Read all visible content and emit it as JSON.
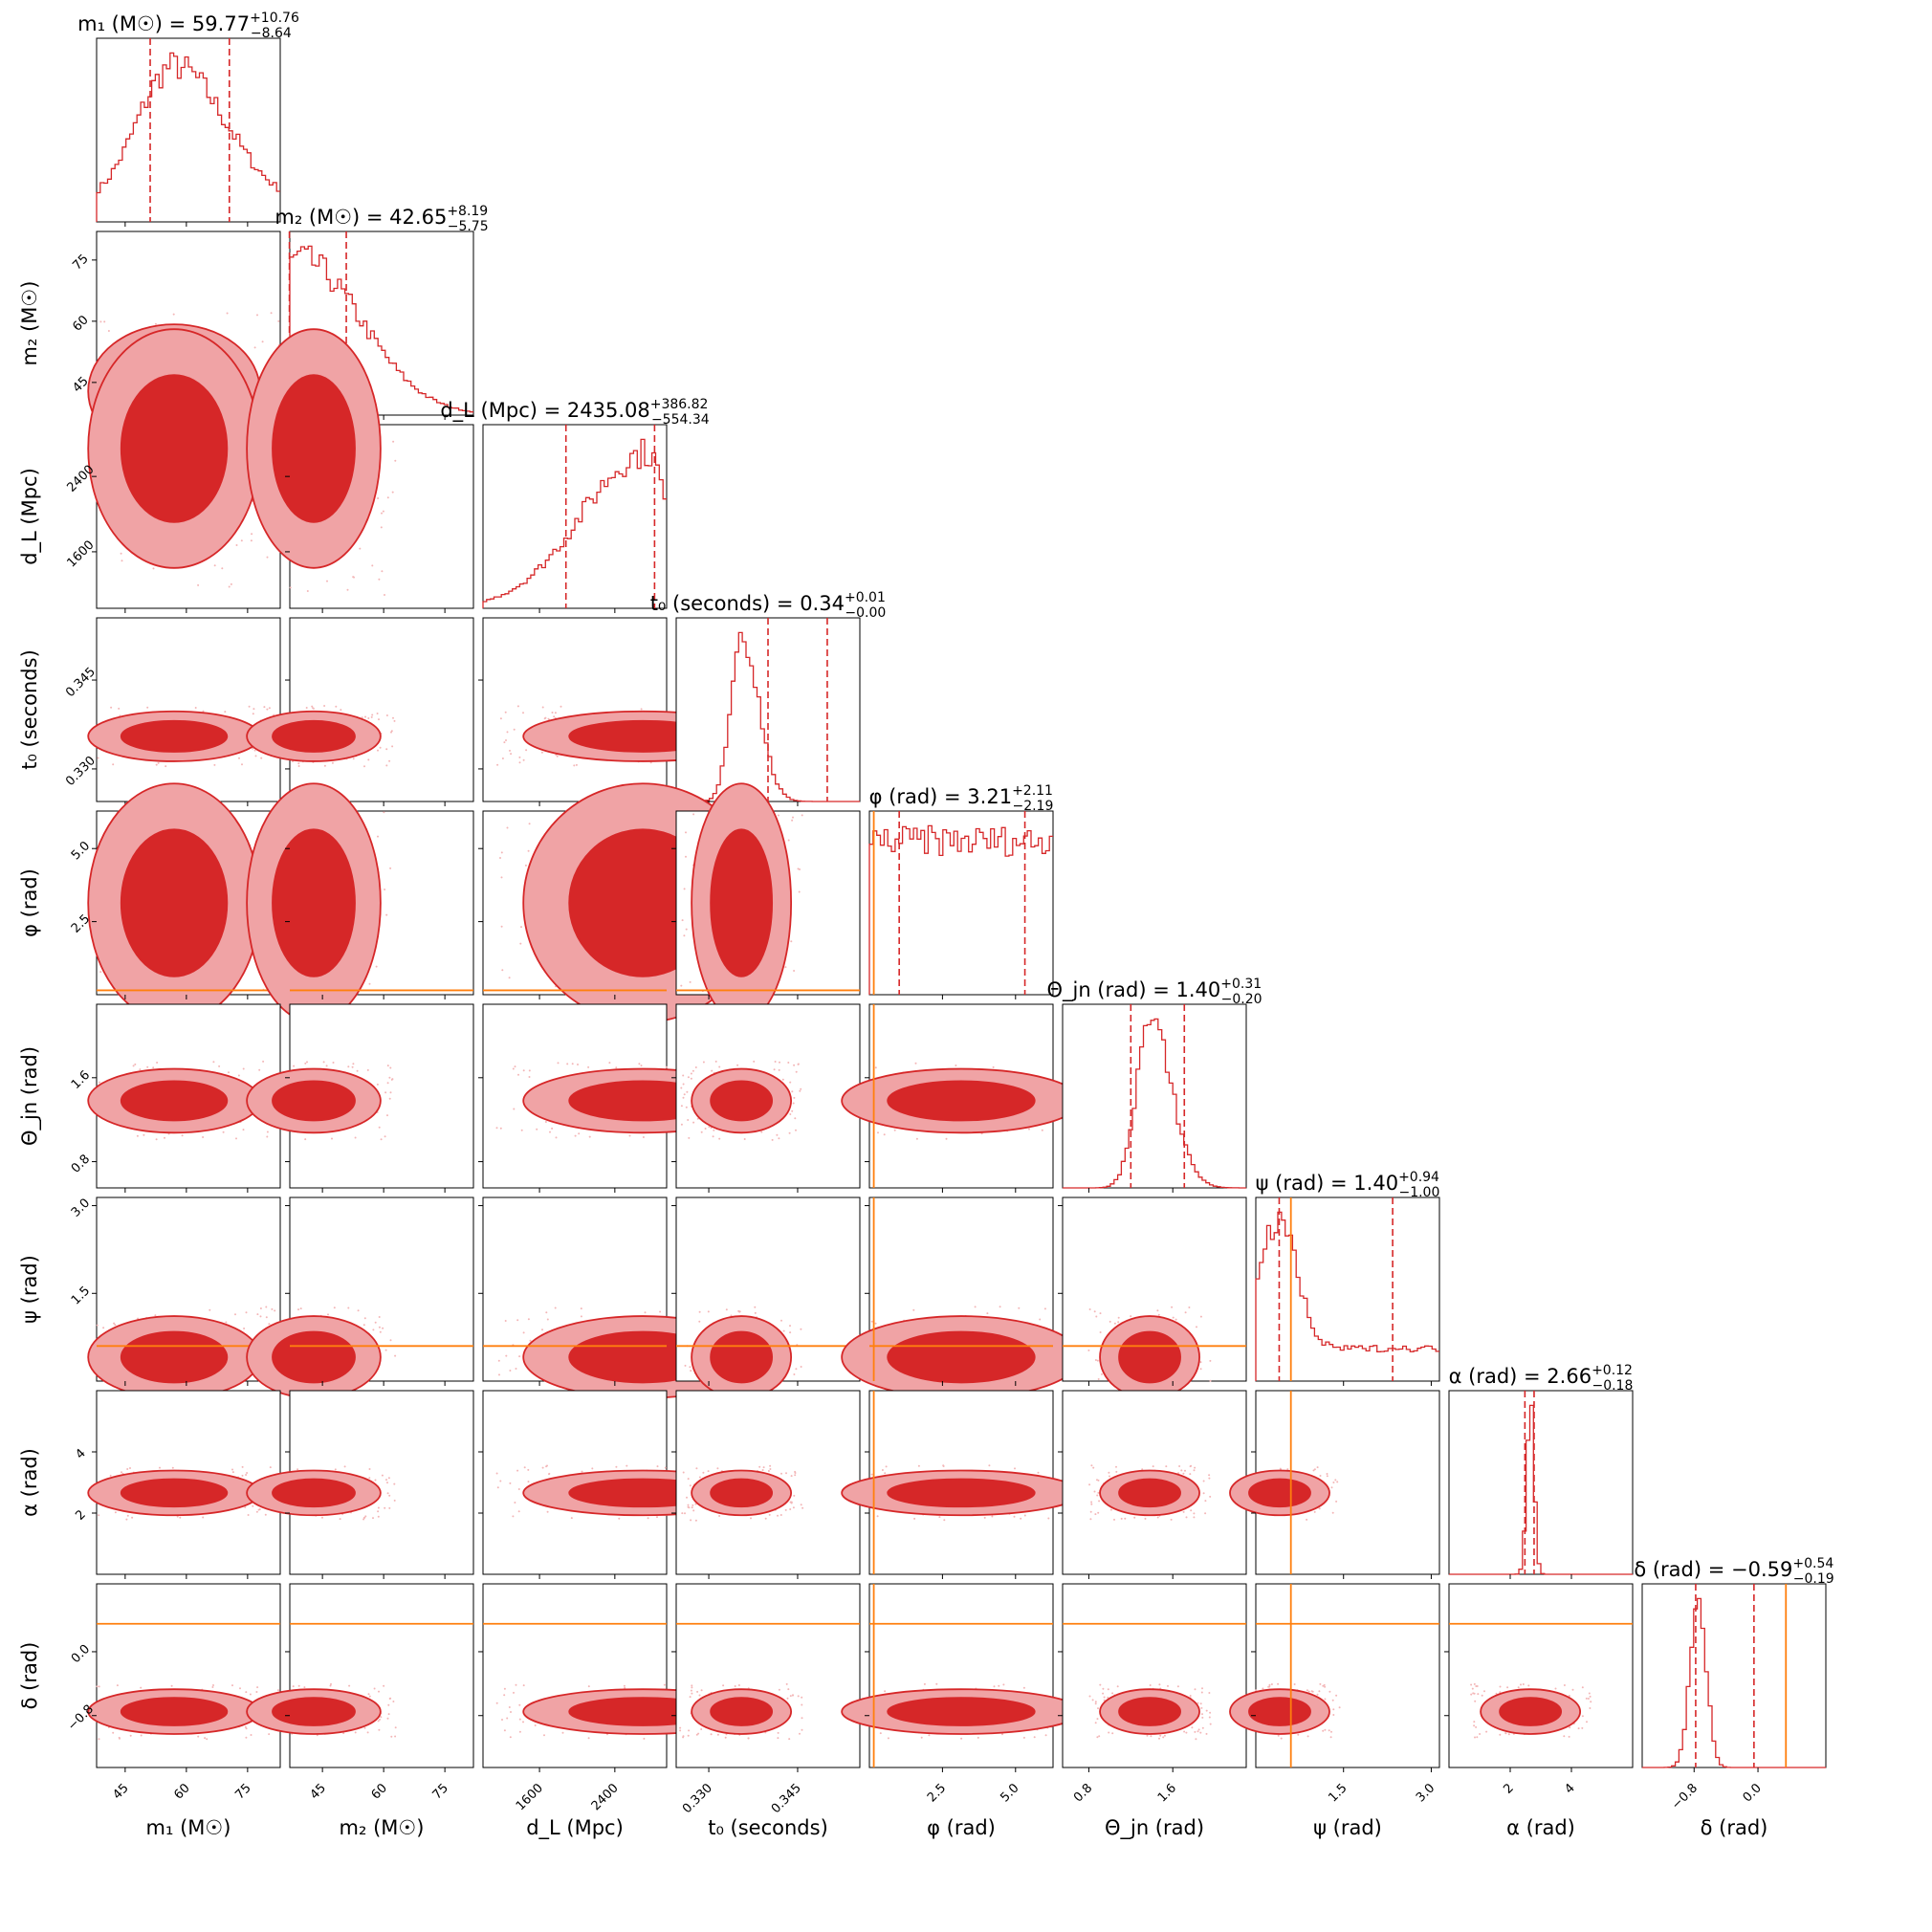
{
  "chart_data": {
    "type": "corner",
    "parameters": [
      {
        "key": "m1",
        "label": "m₁ (M☉)",
        "title": "m₁ (M☉) = 59.77",
        "median": 59.77,
        "plus": "+10.76",
        "minus": "−8.64",
        "range": [
          38,
          83
        ],
        "ticks": [
          45,
          60,
          75
        ],
        "tick_labels": [
          "45",
          "60",
          "75"
        ],
        "hist_mode": 57,
        "hist_width": 9,
        "hist_skew": 1.4,
        "hist_floor": 0.1
      },
      {
        "key": "m2",
        "label": "m₂ (M☉)",
        "title": "m₂ (M☉) = 42.65",
        "median": 42.65,
        "plus": "+8.19",
        "minus": "−5.75",
        "range": [
          37,
          82
        ],
        "ticks": [
          45,
          60,
          75
        ],
        "tick_labels": [
          "45",
          "60",
          "75"
        ],
        "hist_mode": 39,
        "hist_width": 7,
        "hist_skew": 2.2,
        "hist_floor": 0.0
      },
      {
        "key": "dL",
        "label": "d_L (Mpc)",
        "title": "d_L (Mpc) = 2435.08",
        "median": 2435.08,
        "plus": "+386.82",
        "minus": "−554.34",
        "range": [
          1000,
          2950
        ],
        "ticks": [
          1600,
          2400
        ],
        "tick_labels": [
          "1600",
          "2400"
        ],
        "hist_mode": 2750,
        "hist_width": 700,
        "hist_skew": 0.3,
        "hist_floor": 0.0
      },
      {
        "key": "t0",
        "label": "t₀ (seconds)",
        "title": "t₀ (seconds) = 0.34",
        "median": 0.34,
        "plus": "+0.01",
        "minus": "−0.00",
        "range": [
          0.3245,
          0.3555
        ],
        "ticks": [
          0.33,
          0.345
        ],
        "tick_labels": [
          "0.330",
          "0.345"
        ],
        "hist_mode": 0.3355,
        "hist_width": 0.0018,
        "hist_skew": 1.6,
        "hist_floor": 0.0
      },
      {
        "key": "phi",
        "label": "φ (rad)",
        "title": "φ (rad) = 3.21",
        "median": 3.21,
        "plus": "+2.11",
        "minus": "−2.19",
        "range": [
          0,
          6.283
        ],
        "ticks": [
          2.5,
          5.0
        ],
        "tick_labels": [
          "2.5",
          "5.0"
        ],
        "hist_mode": 3.14,
        "hist_width": 100,
        "hist_skew": 1,
        "hist_floor": 0.8
      },
      {
        "key": "theta",
        "label": "Θ_jn (rad)",
        "title": "Θ_jn (rad) = 1.40",
        "median": 1.4,
        "plus": "+0.31",
        "minus": "−0.20",
        "range": [
          0.55,
          2.3
        ],
        "ticks": [
          0.8,
          1.6
        ],
        "tick_labels": [
          "0.8",
          "1.6"
        ],
        "hist_mode": 1.38,
        "hist_width": 0.13,
        "hist_skew": 1.6,
        "hist_floor": 0.0
      },
      {
        "key": "psi",
        "label": "ψ (rad)",
        "title": "ψ (rad) = 1.40",
        "median": 1.4,
        "plus": "+0.94",
        "minus": "−1.00",
        "range": [
          0,
          3.14
        ],
        "ticks": [
          1.5,
          3.0
        ],
        "tick_labels": [
          "1.5",
          "3.0"
        ],
        "hist_mode": 0.4,
        "hist_width": 0.3,
        "hist_skew": 1,
        "hist_floor": 0.2
      },
      {
        "key": "alpha",
        "label": "α (rad)",
        "title": "α (rad) = 2.66",
        "median": 2.66,
        "plus": "+0.12",
        "minus": "−0.18",
        "range": [
          0,
          6.0
        ],
        "ticks": [
          2,
          4
        ],
        "tick_labels": [
          "2",
          "4"
        ],
        "hist_mode": 2.66,
        "hist_width": 0.12,
        "hist_skew": 1,
        "hist_floor": 0.0
      },
      {
        "key": "delta",
        "label": "δ (rad)",
        "title": "δ (rad) = −0.59",
        "median": -0.59,
        "plus": "+0.54",
        "minus": "−0.19",
        "range": [
          -1.45,
          0.85
        ],
        "ticks": [
          -0.8,
          0.0
        ],
        "tick_labels": [
          "−0.8",
          "0.0"
        ],
        "hist_mode": -0.75,
        "hist_width": 0.1,
        "hist_skew": 1,
        "hist_floor": 0.0
      }
    ],
    "truths": {
      "phi": 0.15,
      "psi": 0.6,
      "delta": 0.35
    },
    "colors": {
      "histogram": "#d62728",
      "contour_inner": "#d62728",
      "contour_outer": "#f0a3a5",
      "scatter": "#f3b6b7",
      "truth": "#ff7f0e"
    }
  }
}
